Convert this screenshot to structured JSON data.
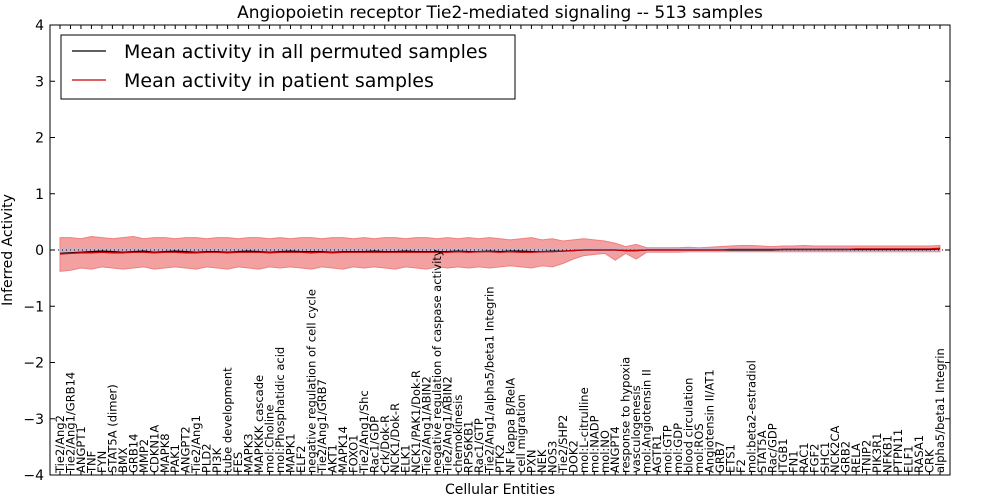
{
  "chart_data": {
    "type": "line",
    "title": "Angiopoietin receptor Tie2-mediated signaling -- 513 samples",
    "xlabel": "Cellular Entities",
    "ylabel": "Inferred Activity",
    "ylim": [
      -4,
      4
    ],
    "yticks": [
      -4,
      -3,
      -2,
      -1,
      0,
      1,
      2,
      3,
      4
    ],
    "grid": false,
    "legend_position": "top-left",
    "colors": {
      "permuted": "#000000",
      "patient": "#cc0000",
      "patient_band": "#ee8080",
      "permuted_band": "#b8b8d8"
    },
    "categories": [
      "Tie2/Ang2",
      "Tie2/Ang1/GRB14",
      "ANGPT1",
      "TNF",
      "FYN",
      "STAT5A (dimer)",
      "BMX",
      "GRB14",
      "MMP2",
      "CDKN1A",
      "MAPK8",
      "PAK1",
      "ANGPT2",
      "Tie2/Ang1",
      "PLD2",
      "PI3K",
      "tube development",
      "FES",
      "MAPK3",
      "MAPKKK cascade",
      "mol:Choline",
      "mol:Phosphatidic acid",
      "MAPK1",
      "ELF2",
      "negative regulation of cell cycle",
      "Tie2/Ang1/GRB7",
      "AKT1",
      "MAPK14",
      "FOXO1",
      "Tie2/Ang1/Shc",
      "Rac1/GDP",
      "Crk/Dok-R",
      "NCK1/Dok-R",
      "ELK1",
      "NCK1/PAK1/Dok-R",
      "Tie2/Ang1/ABIN2",
      "negative regulation of caspase activity",
      "Tie2/Ang1/ABIN2",
      "chemokinesis",
      "RPS6KB1",
      "Rac1/GTP",
      "Tie2/Ang1/alpha5/beta1 Integrin",
      "PTK2",
      "NF kappa B/RelA",
      "cell migration",
      "PXN",
      "NEK",
      "NOS3",
      "Tie2/SHP2",
      "DOK2",
      "mol:L-citrulline",
      "mol:NADP",
      "mol:NO",
      "ANGPT4",
      "response to hypoxia",
      "vasculogenesis",
      "mol:Angiotensin II",
      "AGTR1",
      "mol:GTP",
      "mol:GDP",
      "blood circulation",
      "mol:ROS",
      "Angiotensin II/AT1",
      "GRB7",
      "ETS1",
      "F2",
      "mol:beta2-estradiol",
      "STAT5A",
      "Rac/GDP",
      "ITGB1",
      "FN1",
      "RAC1",
      "FGF2",
      "SHC1",
      "NCK2CA",
      "GRB2",
      "RELA",
      "TNIP2",
      "PIK3R1",
      "NFKB1",
      "PTPN11",
      "ELF1",
      "RASA1",
      "CRK",
      "alpha5/beta1 Integrin"
    ],
    "series": [
      {
        "name": "Mean activity in all permuted samples",
        "values": [
          -0.06,
          -0.05,
          -0.04,
          -0.03,
          -0.02,
          -0.03,
          -0.04,
          -0.03,
          -0.02,
          -0.04,
          -0.03,
          -0.02,
          -0.03,
          -0.04,
          -0.03,
          -0.03,
          -0.04,
          -0.03,
          -0.02,
          -0.03,
          -0.04,
          -0.03,
          -0.02,
          -0.03,
          -0.03,
          -0.03,
          -0.04,
          -0.03,
          -0.03,
          -0.03,
          -0.02,
          -0.03,
          -0.03,
          -0.02,
          -0.03,
          -0.03,
          -0.03,
          -0.03,
          -0.02,
          -0.03,
          -0.03,
          -0.02,
          -0.03,
          -0.02,
          -0.02,
          -0.03,
          -0.03,
          -0.02,
          -0.02,
          -0.01,
          0.0,
          0.0,
          0.0,
          0.0,
          -0.01,
          -0.01,
          0.0,
          0.0,
          0.0,
          0.0,
          0.0,
          0.0,
          0.0,
          0.0,
          0.0,
          0.0,
          0.0,
          0.0,
          0.0,
          0.01,
          0.01,
          0.01,
          0.01,
          0.01,
          0.01,
          0.01,
          0.01,
          0.01,
          0.01,
          0.01,
          0.01,
          0.01,
          0.01,
          0.01,
          0.02
        ]
      },
      {
        "name": "Mean activity in patient samples",
        "values": [
          -0.07,
          -0.06,
          -0.05,
          -0.05,
          -0.04,
          -0.05,
          -0.05,
          -0.04,
          -0.04,
          -0.05,
          -0.04,
          -0.04,
          -0.05,
          -0.05,
          -0.04,
          -0.04,
          -0.05,
          -0.04,
          -0.04,
          -0.04,
          -0.05,
          -0.04,
          -0.04,
          -0.04,
          -0.05,
          -0.04,
          -0.05,
          -0.04,
          -0.04,
          -0.04,
          -0.04,
          -0.04,
          -0.04,
          -0.04,
          -0.04,
          -0.04,
          -0.04,
          -0.04,
          -0.03,
          -0.04,
          -0.03,
          -0.03,
          -0.04,
          -0.03,
          -0.04,
          -0.04,
          -0.03,
          -0.03,
          -0.02,
          -0.01,
          0.0,
          0.0,
          0.0,
          0.0,
          -0.01,
          -0.01,
          0.0,
          0.0,
          0.0,
          0.0,
          0.0,
          0.0,
          0.0,
          0.0,
          0.01,
          0.01,
          0.01,
          0.01,
          0.01,
          0.01,
          0.01,
          0.01,
          0.01,
          0.01,
          0.01,
          0.01,
          0.02,
          0.02,
          0.02,
          0.02,
          0.02,
          0.02,
          0.02,
          0.02,
          0.03
        ]
      }
    ],
    "patient_band": {
      "upper": [
        0.22,
        0.22,
        0.2,
        0.24,
        0.22,
        0.2,
        0.22,
        0.24,
        0.2,
        0.22,
        0.22,
        0.2,
        0.22,
        0.22,
        0.2,
        0.22,
        0.22,
        0.2,
        0.22,
        0.22,
        0.2,
        0.22,
        0.2,
        0.22,
        0.22,
        0.2,
        0.22,
        0.22,
        0.2,
        0.22,
        0.2,
        0.22,
        0.22,
        0.2,
        0.22,
        0.22,
        0.2,
        0.22,
        0.2,
        0.22,
        0.2,
        0.22,
        0.2,
        0.18,
        0.2,
        0.22,
        0.18,
        0.2,
        0.16,
        0.18,
        0.2,
        0.18,
        0.16,
        0.12,
        0.06,
        0.1,
        0.04,
        0.04,
        0.04,
        0.04,
        0.05,
        0.04,
        0.05,
        0.06,
        0.07,
        0.08,
        0.08,
        0.07,
        0.06,
        0.07,
        0.07,
        0.08,
        0.07,
        0.07,
        0.07,
        0.07,
        0.07,
        0.07,
        0.07,
        0.07,
        0.07,
        0.07,
        0.07,
        0.07,
        0.08
      ],
      "lower": [
        -0.38,
        -0.36,
        -0.32,
        -0.34,
        -0.3,
        -0.32,
        -0.34,
        -0.32,
        -0.3,
        -0.34,
        -0.32,
        -0.3,
        -0.32,
        -0.34,
        -0.3,
        -0.32,
        -0.34,
        -0.3,
        -0.32,
        -0.34,
        -0.3,
        -0.32,
        -0.3,
        -0.32,
        -0.34,
        -0.3,
        -0.32,
        -0.34,
        -0.3,
        -0.32,
        -0.3,
        -0.32,
        -0.34,
        -0.3,
        -0.32,
        -0.34,
        -0.3,
        -0.32,
        -0.3,
        -0.32,
        -0.3,
        -0.32,
        -0.3,
        -0.28,
        -0.3,
        -0.32,
        -0.28,
        -0.3,
        -0.24,
        -0.16,
        -0.1,
        -0.08,
        -0.06,
        -0.18,
        -0.06,
        -0.16,
        -0.04,
        -0.04,
        -0.04,
        -0.04,
        -0.03,
        -0.03,
        -0.03,
        -0.03,
        -0.03,
        -0.03,
        -0.03,
        -0.03,
        -0.03,
        -0.03,
        -0.03,
        -0.03,
        -0.03,
        -0.03,
        -0.03,
        -0.03,
        -0.03,
        -0.03,
        -0.03,
        -0.03,
        -0.03,
        -0.03,
        -0.03,
        -0.03,
        -0.03
      ]
    },
    "permuted_band": {
      "upper": [
        0.03,
        0.03,
        0.03,
        0.03,
        0.03,
        0.03,
        0.03,
        0.03,
        0.03,
        0.03,
        0.03,
        0.03,
        0.03,
        0.03,
        0.03,
        0.03,
        0.03,
        0.03,
        0.03,
        0.03,
        0.03,
        0.03,
        0.03,
        0.03,
        0.03,
        0.03,
        0.03,
        0.03,
        0.03,
        0.03,
        0.03,
        0.03,
        0.03,
        0.03,
        0.03,
        0.03,
        0.03,
        0.03,
        0.03,
        0.03,
        0.03,
        0.03,
        0.03,
        0.03,
        0.03,
        0.03,
        0.03,
        0.03,
        0.03,
        0.03,
        0.03,
        0.03,
        0.03,
        0.03,
        0.03,
        0.03,
        0.03,
        0.03,
        0.03,
        0.03,
        0.04,
        0.04,
        0.04,
        0.04,
        0.04,
        0.04,
        0.04,
        0.04,
        0.04,
        0.05,
        0.05,
        0.05,
        0.05,
        0.05,
        0.05,
        0.05,
        0.05,
        0.05,
        0.05,
        0.05,
        0.05,
        0.05,
        0.05,
        0.05,
        0.05
      ],
      "lower": [
        -0.05,
        -0.05,
        -0.05,
        -0.05,
        -0.05,
        -0.05,
        -0.05,
        -0.05,
        -0.05,
        -0.05,
        -0.05,
        -0.05,
        -0.05,
        -0.05,
        -0.05,
        -0.05,
        -0.05,
        -0.05,
        -0.05,
        -0.05,
        -0.05,
        -0.05,
        -0.05,
        -0.05,
        -0.05,
        -0.05,
        -0.05,
        -0.05,
        -0.05,
        -0.05,
        -0.05,
        -0.05,
        -0.05,
        -0.05,
        -0.05,
        -0.05,
        -0.05,
        -0.05,
        -0.05,
        -0.05,
        -0.05,
        -0.05,
        -0.05,
        -0.05,
        -0.05,
        -0.05,
        -0.05,
        -0.05,
        -0.04,
        -0.04,
        -0.04,
        -0.04,
        -0.04,
        -0.04,
        -0.04,
        -0.04,
        -0.04,
        -0.04,
        -0.04,
        -0.04,
        -0.04,
        -0.04,
        -0.04,
        -0.04,
        -0.03,
        -0.03,
        -0.03,
        -0.03,
        -0.03,
        -0.03,
        -0.03,
        -0.03,
        -0.03,
        -0.03,
        -0.03,
        -0.03,
        -0.03,
        -0.03,
        -0.03,
        -0.03,
        -0.03,
        -0.03,
        -0.03,
        -0.03,
        -0.03
      ]
    }
  }
}
